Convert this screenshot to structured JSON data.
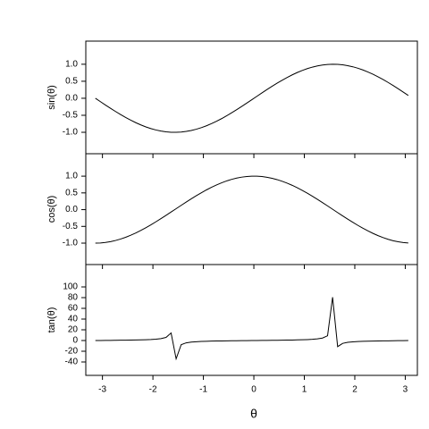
{
  "chart_data": [
    {
      "type": "line",
      "ylabel": "sin(θ)",
      "color": "#000000",
      "x": [
        -3.14,
        -3.04,
        -2.94,
        -2.84,
        -2.74,
        -2.64,
        -2.54,
        -2.44,
        -2.34,
        -2.24,
        -2.14,
        -2.04,
        -1.94,
        -1.84,
        -1.74,
        -1.64,
        -1.54,
        -1.44,
        -1.34,
        -1.24,
        -1.14,
        -1.04,
        -0.94,
        -0.84,
        -0.74,
        -0.64,
        -0.54,
        -0.44,
        -0.34,
        -0.24,
        -0.14,
        -0.04,
        0.06,
        0.16,
        0.26,
        0.36,
        0.46,
        0.56,
        0.66,
        0.76,
        0.86,
        0.96,
        1.06,
        1.16,
        1.26,
        1.36,
        1.46,
        1.56,
        1.66,
        1.76,
        1.86,
        1.96,
        2.06,
        2.16,
        2.26,
        2.36,
        2.46,
        2.56,
        2.66,
        2.76,
        2.86,
        2.96,
        3.06
      ],
      "values": [
        0,
        -0.1,
        -0.199,
        -0.296,
        -0.389,
        -0.479,
        -0.565,
        -0.644,
        -0.717,
        -0.783,
        -0.841,
        -0.891,
        -0.932,
        -0.964,
        -0.985,
        -0.998,
        -1.0,
        -0.992,
        -0.974,
        -0.946,
        -0.909,
        -0.863,
        -0.809,
        -0.746,
        -0.676,
        -0.599,
        -0.516,
        -0.427,
        -0.335,
        -0.239,
        -0.141,
        -0.042,
        0.058,
        0.158,
        0.256,
        0.351,
        0.443,
        0.53,
        0.612,
        0.688,
        0.757,
        0.818,
        0.872,
        0.916,
        0.952,
        0.978,
        0.994,
        1.0,
        0.996,
        0.983,
        0.959,
        0.926,
        0.884,
        0.832,
        0.773,
        0.706,
        0.631,
        0.551,
        0.465,
        0.374,
        0.279,
        0.182,
        0.083
      ],
      "xlim": [
        -3.33,
        3.24
      ],
      "ylim": [
        -1.63,
        1.68
      ],
      "yticks": [
        {
          "value": -1,
          "label": "-1.0"
        },
        -0.5,
        {
          "value": 0,
          "label": "0.0"
        },
        0.5,
        {
          "value": 1,
          "label": "1.0"
        }
      ]
    },
    {
      "type": "line",
      "ylabel": "cos(θ)",
      "color": "#000000",
      "x": [
        -3.14,
        -3.04,
        -2.94,
        -2.84,
        -2.74,
        -2.64,
        -2.54,
        -2.44,
        -2.34,
        -2.24,
        -2.14,
        -2.04,
        -1.94,
        -1.84,
        -1.74,
        -1.64,
        -1.54,
        -1.44,
        -1.34,
        -1.24,
        -1.14,
        -1.04,
        -0.94,
        -0.84,
        -0.74,
        -0.64,
        -0.54,
        -0.44,
        -0.34,
        -0.24,
        -0.14,
        -0.04,
        0.06,
        0.16,
        0.26,
        0.36,
        0.46,
        0.56,
        0.66,
        0.76,
        0.86,
        0.96,
        1.06,
        1.16,
        1.26,
        1.36,
        1.46,
        1.56,
        1.66,
        1.76,
        1.86,
        1.96,
        2.06,
        2.16,
        2.26,
        2.36,
        2.46,
        2.56,
        2.66,
        2.76,
        2.86,
        2.96,
        3.06
      ],
      "values": [
        -1,
        -0.995,
        -0.98,
        -0.955,
        -0.921,
        -0.878,
        -0.825,
        -0.765,
        -0.697,
        -0.622,
        -0.54,
        -0.454,
        -0.362,
        -0.268,
        -0.17,
        -0.071,
        0.029,
        0.129,
        0.227,
        0.323,
        0.416,
        0.505,
        0.589,
        0.666,
        0.737,
        0.801,
        0.857,
        0.904,
        0.942,
        0.971,
        0.99,
        0.999,
        0.998,
        0.988,
        0.967,
        0.937,
        0.897,
        0.848,
        0.791,
        0.726,
        0.654,
        0.575,
        0.49,
        0.401,
        0.307,
        0.211,
        0.112,
        0.012,
        -0.088,
        -0.187,
        -0.284,
        -0.378,
        -0.469,
        -0.554,
        -0.635,
        -0.709,
        -0.776,
        -0.835,
        -0.886,
        -0.928,
        -0.96,
        -0.983,
        -0.997
      ],
      "xlim": [
        -3.33,
        3.24
      ],
      "ylim": [
        -1.64,
        1.67
      ],
      "yticks": [
        {
          "value": -1,
          "label": "-1.0"
        },
        -0.5,
        {
          "value": 0,
          "label": "0.0"
        },
        0.5,
        {
          "value": 1,
          "label": "1.0"
        }
      ]
    },
    {
      "type": "line",
      "ylabel": "tan(θ)",
      "xlabel": "θ",
      "color": "#000000",
      "x": [
        -3.14,
        -3.04,
        -2.94,
        -2.84,
        -2.74,
        -2.64,
        -2.54,
        -2.44,
        -2.34,
        -2.24,
        -2.14,
        -2.04,
        -1.94,
        -1.84,
        -1.74,
        -1.64,
        -1.54,
        -1.44,
        -1.34,
        -1.24,
        -1.14,
        -1.04,
        -0.94,
        -0.84,
        -0.74,
        -0.64,
        -0.54,
        -0.44,
        -0.34,
        -0.24,
        -0.14,
        -0.04,
        0.06,
        0.16,
        0.26,
        0.36,
        0.46,
        0.56,
        0.66,
        0.76,
        0.86,
        0.96,
        1.06,
        1.16,
        1.26,
        1.36,
        1.46,
        1.56,
        1.66,
        1.76,
        1.86,
        1.96,
        2.06,
        2.16,
        2.26,
        2.36,
        2.46,
        2.56,
        2.66,
        2.76,
        2.86,
        2.96,
        3.06
      ],
      "values": [
        0,
        0.1,
        0.203,
        0.309,
        0.423,
        0.546,
        0.684,
        0.842,
        1.03,
        1.26,
        1.557,
        1.965,
        2.572,
        3.602,
        5.798,
        14.101,
        -34.233,
        -7.697,
        -4.286,
        -2.927,
        -2.185,
        -1.71,
        -1.374,
        -1.119,
        -0.916,
        -0.747,
        -0.602,
        -0.473,
        -0.356,
        -0.246,
        -0.143,
        -0.042,
        0.059,
        0.16,
        0.264,
        0.375,
        0.494,
        0.625,
        0.774,
        0.948,
        1.158,
        1.424,
        1.778,
        2.286,
        3.096,
        4.637,
        8.86,
        80.713,
        -11.385,
        -5.267,
        -3.381,
        -2.449,
        -1.886,
        -1.501,
        -1.218,
        -0.996,
        -0.814,
        -0.66,
        -0.525,
        -0.403,
        -0.291,
        -0.185,
        -0.083
      ],
      "xlim": [
        -3.33,
        3.24
      ],
      "ylim": [
        -65,
        141.7
      ],
      "yticks": [
        -40,
        -20,
        0,
        20,
        40,
        60,
        80,
        100
      ],
      "xticks": [
        -3,
        -2,
        -1,
        0,
        1,
        2,
        3
      ]
    }
  ]
}
